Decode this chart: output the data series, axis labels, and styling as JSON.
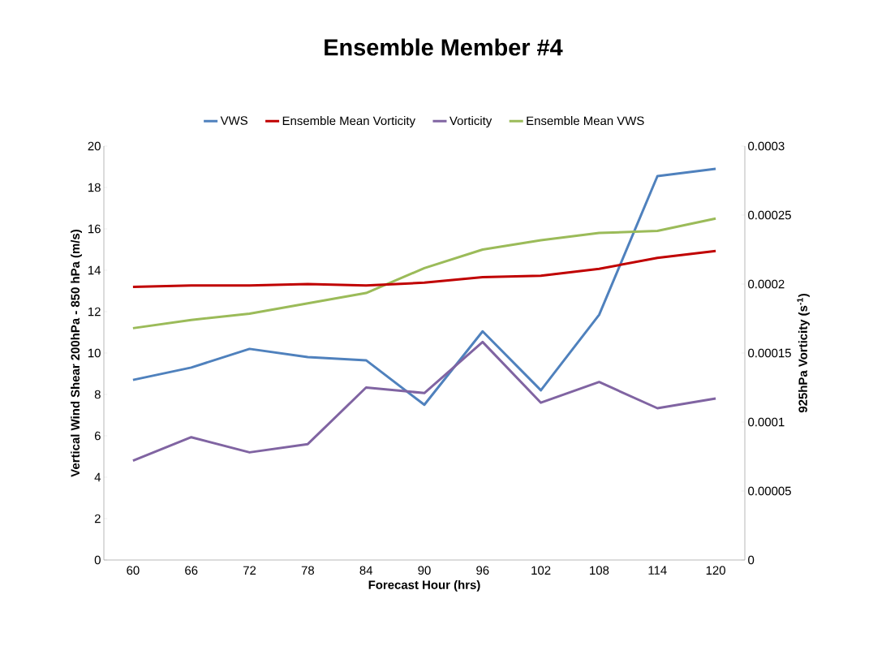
{
  "chart_data": {
    "type": "line",
    "title": "Ensemble Member #4",
    "xlabel": "Forecast Hour (hrs)",
    "ylabel": "Vertical Wind Shear  200hPa - 850 hPa (m/s)",
    "y2label": "925hPa Vorticity (s$^{-1}$)",
    "categories": [
      "60",
      "66",
      "72",
      "78",
      "84",
      "90",
      "96",
      "102",
      "108",
      "114",
      "120"
    ],
    "series": [
      {
        "name": "VWS",
        "color": "#4f81bd",
        "values": [
          8.7,
          9.3,
          10.2,
          9.8,
          9.65,
          7.5,
          11.05,
          8.2,
          11.85,
          18.55,
          18.9
        ]
      },
      {
        "name": "Ensemble Mean Vorticity",
        "color": "#c00000",
        "axis": "y2",
        "values": [
          0.000198,
          0.000199,
          0.000199,
          0.0002,
          0.000199,
          0.000201,
          0.000205,
          0.000206,
          0.000211,
          0.000219,
          0.000224
        ]
      },
      {
        "name": "Vorticity",
        "color": "#8064a2",
        "axis": "y2",
        "values": [
          7.2e-05,
          8.9e-05,
          7.8e-05,
          8.4e-05,
          0.000125,
          0.000121,
          0.000158,
          0.000114,
          0.000129,
          0.00011,
          0.000117
        ]
      },
      {
        "name": "Ensemble Mean VWS",
        "color": "#9bbb59",
        "values": [
          11.2,
          11.6,
          11.9,
          12.4,
          12.9,
          14.1,
          15.0,
          15.45,
          15.8,
          15.9,
          16.5
        ]
      }
    ],
    "ylim": [
      0,
      20
    ],
    "yticks": [
      0,
      2,
      4,
      6,
      8,
      10,
      12,
      14,
      16,
      18,
      20
    ],
    "y2lim": [
      0,
      0.0003
    ],
    "y2ticks": [
      {
        "value": 0,
        "label": "0"
      },
      {
        "value": 5e-05,
        "label": "0.00005"
      },
      {
        "value": 0.0001,
        "label": "0.0001"
      },
      {
        "value": 0.00015,
        "label": "0.00015"
      },
      {
        "value": 0.0002,
        "label": "0.0002"
      },
      {
        "value": 0.00025,
        "label": "0.00025"
      },
      {
        "value": 0.0003,
        "label": "0.0003"
      }
    ],
    "legend": "top",
    "marker": "none",
    "line_style": "solid"
  }
}
